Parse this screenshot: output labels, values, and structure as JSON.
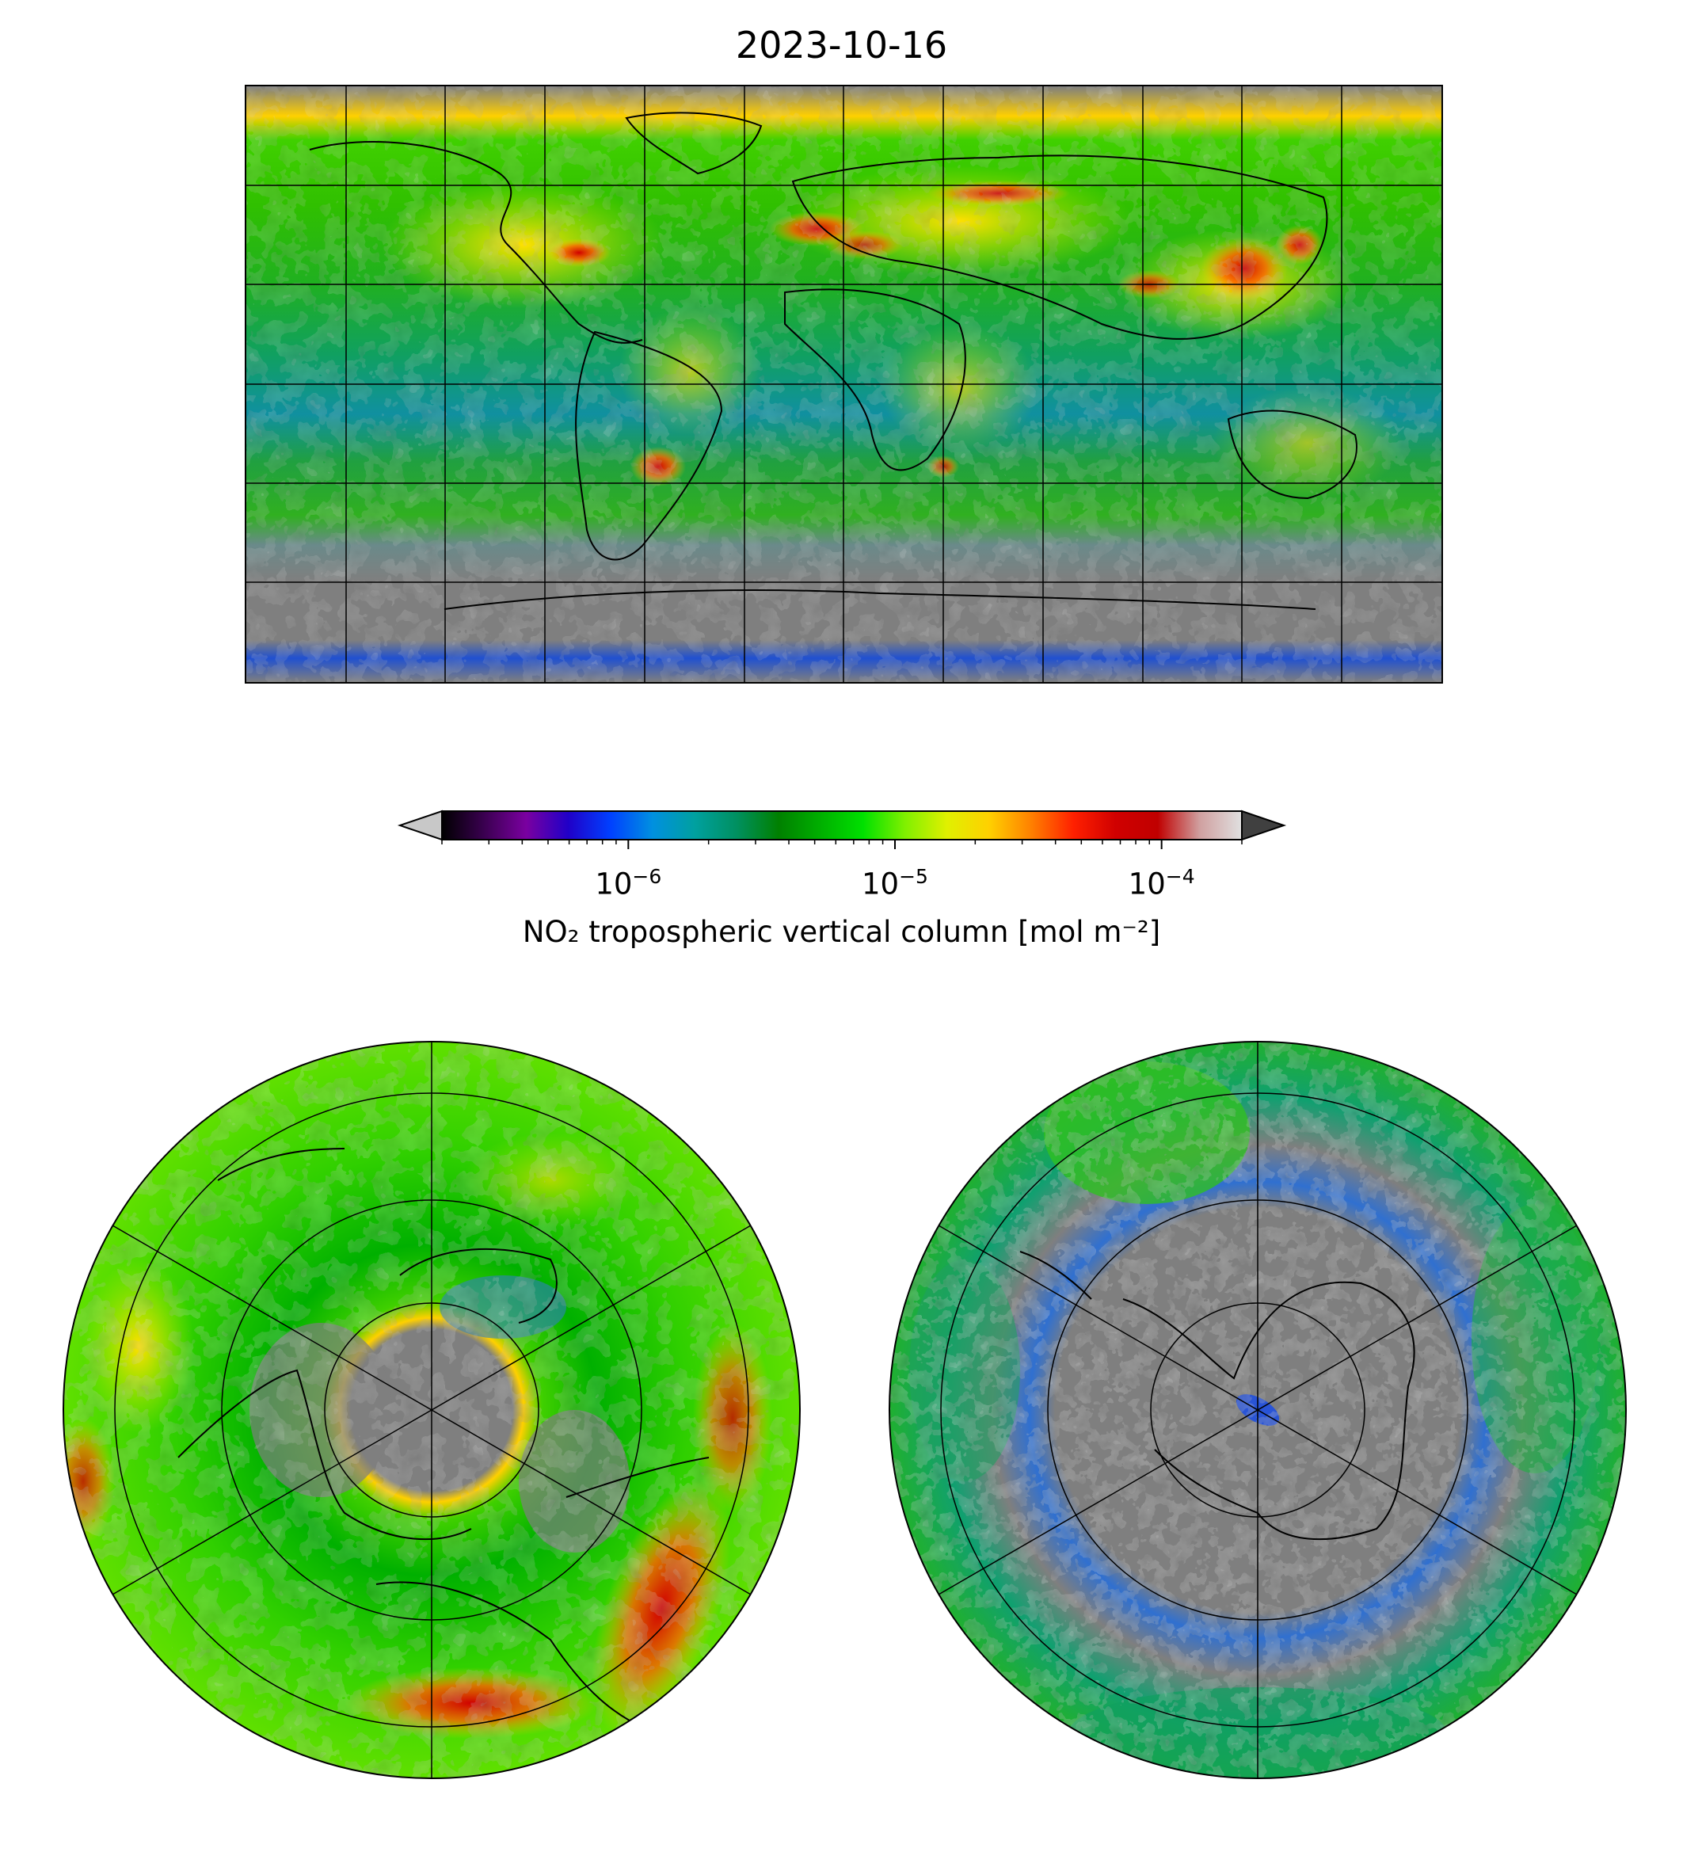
{
  "title": "2023-10-16",
  "colorbar": {
    "label": "NO₂ tropospheric vertical column [mol m⁻²]",
    "scale": "log",
    "range": [
      2e-07,
      0.0002
    ],
    "ticks": [
      {
        "value": 1e-06,
        "base": "10",
        "exp": "−6"
      },
      {
        "value": 1e-05,
        "base": "10",
        "exp": "−5"
      },
      {
        "value": 0.0001,
        "base": "10",
        "exp": "−4"
      }
    ],
    "extend": "both",
    "colors": [
      "#000000",
      "#3a0050",
      "#7a00a0",
      "#2000c8",
      "#0040ff",
      "#0090e0",
      "#00a0a0",
      "#009060",
      "#008000",
      "#00b000",
      "#00e000",
      "#80f000",
      "#e0f000",
      "#ffd000",
      "#ff8000",
      "#ff2000",
      "#d00000",
      "#c00000",
      "#d0a0a0",
      "#e0e0e0"
    ],
    "under_color": "#c8c8c8",
    "over_color": "#404040"
  },
  "maps": {
    "global": {
      "projection": "plate-carree",
      "nodata_color": "#7f7f7f"
    },
    "north_polar": {
      "projection": "north-polar-stereographic"
    },
    "south_polar": {
      "projection": "south-polar-stereographic"
    }
  }
}
